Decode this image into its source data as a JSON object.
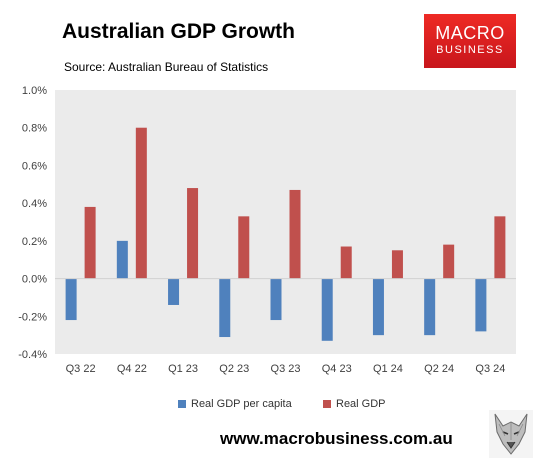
{
  "chart_data": {
    "type": "bar",
    "title": "Australian GDP Growth",
    "subtitle": "Source: Australian Bureau of Statistics",
    "categories": [
      "Q3 22",
      "Q4 22",
      "Q1 23",
      "Q2 23",
      "Q3 23",
      "Q4 23",
      "Q1 24",
      "Q2 24",
      "Q3 24"
    ],
    "series": [
      {
        "name": "Real GDP per capita",
        "color": "#4f81bd",
        "values": [
          -0.22,
          0.2,
          -0.14,
          -0.31,
          -0.22,
          -0.33,
          -0.3,
          -0.3,
          -0.28
        ]
      },
      {
        "name": "Real GDP",
        "color": "#c0504d",
        "values": [
          0.38,
          0.8,
          0.48,
          0.33,
          0.47,
          0.17,
          0.15,
          0.18,
          0.33
        ]
      }
    ],
    "ylim": [
      -0.4,
      1.0
    ],
    "yticks": [
      -0.4,
      -0.2,
      0.0,
      0.2,
      0.4,
      0.6,
      0.8,
      1.0
    ],
    "ytick_labels": [
      "-0.4%",
      "-0.2%",
      "0.0%",
      "0.2%",
      "0.4%",
      "0.6%",
      "0.8%",
      "1.0%"
    ],
    "grid": false,
    "legend_position": "bottom",
    "plot_background": "#ebebeb"
  },
  "branding": {
    "logo_line1": "MACRO",
    "logo_line2": "BUSINESS",
    "logo_color": "#e02320",
    "url": "www.macrobusiness.com.au",
    "mascot_icon": "wolf-icon"
  }
}
